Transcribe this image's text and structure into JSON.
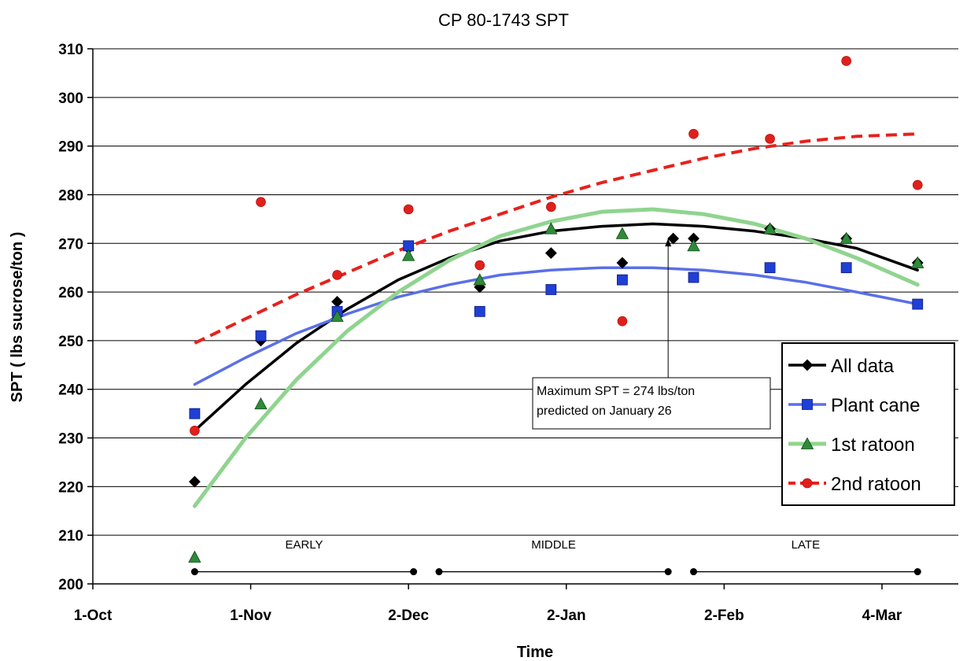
{
  "chart_data": {
    "type": "scatter",
    "title": "CP 80-1743 SPT",
    "xlabel": "Time",
    "ylabel": "SPT ( lbs sucrose/ton )",
    "ylim": [
      200,
      310
    ],
    "yticks": [
      200,
      210,
      220,
      230,
      240,
      250,
      260,
      270,
      280,
      290,
      300,
      310
    ],
    "xlim_days": [
      0,
      170
    ],
    "xticks": [
      {
        "label": "1-Oct",
        "day": 0
      },
      {
        "label": "1-Nov",
        "day": 31
      },
      {
        "label": "2-Dec",
        "day": 62
      },
      {
        "label": "2-Jan",
        "day": 93
      },
      {
        "label": "2-Feb",
        "day": 124
      },
      {
        "label": "4-Mar",
        "day": 155
      }
    ],
    "grid": "horizontal",
    "legend_position": "bottom-right",
    "series": [
      {
        "name": "All data",
        "marker": "diamond",
        "color": "#000000",
        "points": [
          [
            20,
            221
          ],
          [
            33,
            250
          ],
          [
            48,
            258
          ],
          [
            62,
            269
          ],
          [
            76,
            261
          ],
          [
            90,
            268
          ],
          [
            104,
            266
          ],
          [
            114,
            271
          ],
          [
            118,
            271
          ],
          [
            133,
            273
          ],
          [
            148,
            271
          ],
          [
            162,
            266
          ]
        ],
        "trend": {
          "color": "#000000",
          "style": "solid",
          "points": [
            [
              20,
              231.5
            ],
            [
              30,
              241
            ],
            [
              40,
              249.5
            ],
            [
              50,
              256.5
            ],
            [
              60,
              262.5
            ],
            [
              70,
              267
            ],
            [
              80,
              270.5
            ],
            [
              90,
              272.5
            ],
            [
              100,
              273.5
            ],
            [
              110,
              274
            ],
            [
              120,
              273.5
            ],
            [
              130,
              272.5
            ],
            [
              140,
              271
            ],
            [
              150,
              269
            ],
            [
              162,
              264.5
            ]
          ]
        }
      },
      {
        "name": "Plant cane",
        "marker": "square",
        "color": "#1f3fd6",
        "points": [
          [
            20,
            235
          ],
          [
            33,
            251
          ],
          [
            48,
            256
          ],
          [
            62,
            269.5
          ],
          [
            76,
            256
          ],
          [
            90,
            260.5
          ],
          [
            104,
            262.5
          ],
          [
            118,
            263
          ],
          [
            133,
            265
          ],
          [
            148,
            265
          ],
          [
            162,
            257.5
          ]
        ],
        "trend": {
          "color": "#5a6fe8",
          "style": "solid",
          "points": [
            [
              20,
              241
            ],
            [
              30,
              246.5
            ],
            [
              40,
              251.5
            ],
            [
              50,
              255.5
            ],
            [
              60,
              259
            ],
            [
              70,
              261.5
            ],
            [
              80,
              263.5
            ],
            [
              90,
              264.5
            ],
            [
              100,
              265
            ],
            [
              110,
              265
            ],
            [
              120,
              264.5
            ],
            [
              130,
              263.5
            ],
            [
              140,
              262
            ],
            [
              150,
              260
            ],
            [
              162,
              257.5
            ]
          ]
        }
      },
      {
        "name": "1st ratoon",
        "marker": "triangle",
        "color": "#2e8b3a",
        "points": [
          [
            20,
            205.5
          ],
          [
            33,
            237
          ],
          [
            48,
            255
          ],
          [
            62,
            267.5
          ],
          [
            76,
            262.5
          ],
          [
            90,
            273
          ],
          [
            104,
            272
          ],
          [
            118,
            269.5
          ],
          [
            133,
            273
          ],
          [
            148,
            271
          ],
          [
            162,
            266
          ]
        ],
        "trend": {
          "color": "#8fd48f",
          "style": "solid",
          "points": [
            [
              20,
              216
            ],
            [
              30,
              230
            ],
            [
              40,
              242
            ],
            [
              50,
              252
            ],
            [
              60,
              260
            ],
            [
              70,
              266.5
            ],
            [
              80,
              271.5
            ],
            [
              90,
              274.5
            ],
            [
              100,
              276.5
            ],
            [
              110,
              277
            ],
            [
              120,
              276
            ],
            [
              130,
              274
            ],
            [
              140,
              271
            ],
            [
              150,
              267
            ],
            [
              162,
              261.5
            ]
          ]
        }
      },
      {
        "name": "2nd ratoon",
        "marker": "circle",
        "color": "#e0201b",
        "points": [
          [
            20,
            231.5
          ],
          [
            33,
            278.5
          ],
          [
            48,
            263.5
          ],
          [
            62,
            277
          ],
          [
            76,
            265.5
          ],
          [
            90,
            277.5
          ],
          [
            104,
            254
          ],
          [
            118,
            292.5
          ],
          [
            133,
            291.5
          ],
          [
            148,
            307.5
          ],
          [
            162,
            282
          ]
        ],
        "trend": {
          "color": "#e8211c",
          "style": "dashed",
          "points": [
            [
              20,
              249.5
            ],
            [
              30,
              254.5
            ],
            [
              40,
              259.5
            ],
            [
              50,
              264
            ],
            [
              60,
              268.5
            ],
            [
              70,
              272.5
            ],
            [
              80,
              276
            ],
            [
              90,
              279.5
            ],
            [
              100,
              282.5
            ],
            [
              110,
              285
            ],
            [
              120,
              287.5
            ],
            [
              130,
              289.5
            ],
            [
              140,
              291
            ],
            [
              150,
              292
            ],
            [
              162,
              292.5
            ]
          ]
        }
      }
    ],
    "phases": [
      {
        "label": "EARLY",
        "start_day": 20,
        "end_day": 63
      },
      {
        "label": "MIDDLE",
        "start_day": 68,
        "end_day": 113
      },
      {
        "label": "LATE",
        "start_day": 118,
        "end_day": 162
      }
    ],
    "annotation": {
      "lines": [
        "Maximum SPT = 274 lbs/ton",
        "predicted on January 26"
      ],
      "arrow_target_day": 113,
      "arrow_target_value": 271
    }
  }
}
